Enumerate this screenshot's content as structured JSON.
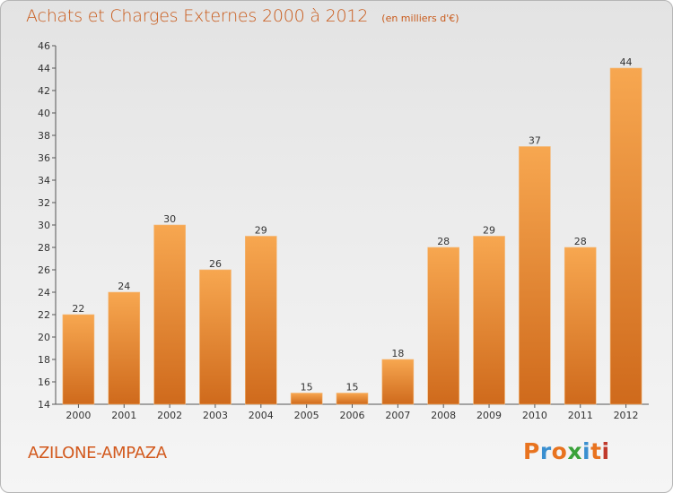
{
  "page": {
    "title": "Achats et Charges Externes 2000 à 2012",
    "unit": "(en milliers d'€)",
    "commune": "AZILONE-AMPAZA",
    "brand": "Proxiti"
  },
  "colors": {
    "title": "#c95a1a",
    "bar_light": "#f7a750",
    "bar_dark": "#cf6a1c",
    "brand": [
      "#e8731f",
      "#3a8fd0",
      "#e8731f",
      "#3aa23a",
      "#3a8fd0",
      "#e8731f",
      "#c0392b"
    ]
  },
  "chart_data": {
    "type": "bar",
    "title": "Achats et Charges Externes 2000 à 2012",
    "subtitle": "(en milliers d'€)",
    "categories": [
      "2000",
      "2001",
      "2002",
      "2003",
      "2004",
      "2005",
      "2006",
      "2007",
      "2008",
      "2009",
      "2010",
      "2011",
      "2012"
    ],
    "values": [
      22,
      24,
      30,
      26,
      29,
      15,
      15,
      18,
      28,
      29,
      37,
      28,
      44
    ],
    "ylim": [
      14,
      46
    ],
    "yticks": [
      14,
      16,
      18,
      20,
      22,
      24,
      26,
      28,
      30,
      32,
      34,
      36,
      38,
      40,
      42,
      44,
      46
    ],
    "grid": false,
    "data_labels": true
  }
}
